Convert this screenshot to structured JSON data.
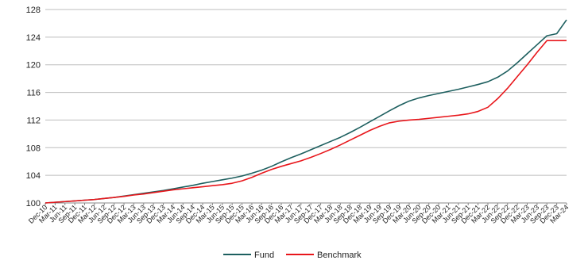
{
  "chart_data": {
    "type": "line",
    "title": "",
    "xlabel": "",
    "ylabel": "",
    "ylim": [
      100,
      128
    ],
    "yticks": [
      100,
      104,
      108,
      112,
      116,
      120,
      124,
      128
    ],
    "grid": "horizontal",
    "legend_position": "bottom-center",
    "x": [
      "Dec-10",
      "Mar-11",
      "Jun-11",
      "Sep-11",
      "Dec-11",
      "Mar-12",
      "Jun-12",
      "Sep-12",
      "Dec-12",
      "Mar-13",
      "Jun-13",
      "Sep-13",
      "Dec-13",
      "Mar-14",
      "Jun-14",
      "Sep-14",
      "Dec-14",
      "Mar-15",
      "Jun-15",
      "Sep-15",
      "Dec-15",
      "Mar-16",
      "Jun-16",
      "Sep-16",
      "Dec-16",
      "Mar-17",
      "Jun-17",
      "Sep-17",
      "Dec-17",
      "Mar-18",
      "Jun-18",
      "Sep-18",
      "Dec-18",
      "Mar-19",
      "Jun-19",
      "Sep-19",
      "Dec-19",
      "Mar-20",
      "Jun-20",
      "Sep-20",
      "Dec-20",
      "Mar-21",
      "Jun-21",
      "Sep-21",
      "Dec-21",
      "Mar-22",
      "Jun-22",
      "Sep-22",
      "Dec-22",
      "Mar-23",
      "Jun-23",
      "Sep-23",
      "Dec-23",
      "Mar-24"
    ],
    "series": [
      {
        "name": "Fund",
        "color": "#1d5f5f",
        "values": [
          100.0,
          100.1,
          100.2,
          100.3,
          100.4,
          100.5,
          100.65,
          100.8,
          101.0,
          101.2,
          101.4,
          101.6,
          101.8,
          102.05,
          102.3,
          102.55,
          102.85,
          103.1,
          103.35,
          103.6,
          103.9,
          104.3,
          104.75,
          105.3,
          105.95,
          106.55,
          107.1,
          107.7,
          108.3,
          108.9,
          109.5,
          110.2,
          110.95,
          111.75,
          112.55,
          113.35,
          114.1,
          114.75,
          115.2,
          115.55,
          115.85,
          116.15,
          116.45,
          116.8,
          117.15,
          117.55,
          118.2,
          119.1,
          120.3,
          121.6,
          122.9,
          124.2,
          124.5,
          126.5
        ]
      },
      {
        "name": "Benchmark",
        "color": "#e8161b",
        "values": [
          100.0,
          100.1,
          100.2,
          100.3,
          100.4,
          100.5,
          100.65,
          100.8,
          100.95,
          101.15,
          101.3,
          101.5,
          101.7,
          101.9,
          102.05,
          102.2,
          102.35,
          102.5,
          102.65,
          102.85,
          103.2,
          103.7,
          104.3,
          104.85,
          105.3,
          105.7,
          106.1,
          106.6,
          107.15,
          107.75,
          108.4,
          109.1,
          109.8,
          110.5,
          111.1,
          111.6,
          111.85,
          112.0,
          112.1,
          112.25,
          112.4,
          112.55,
          112.7,
          112.9,
          113.25,
          113.85,
          115.1,
          116.6,
          118.3,
          120.0,
          121.8,
          123.5,
          123.5,
          123.5
        ]
      }
    ]
  }
}
